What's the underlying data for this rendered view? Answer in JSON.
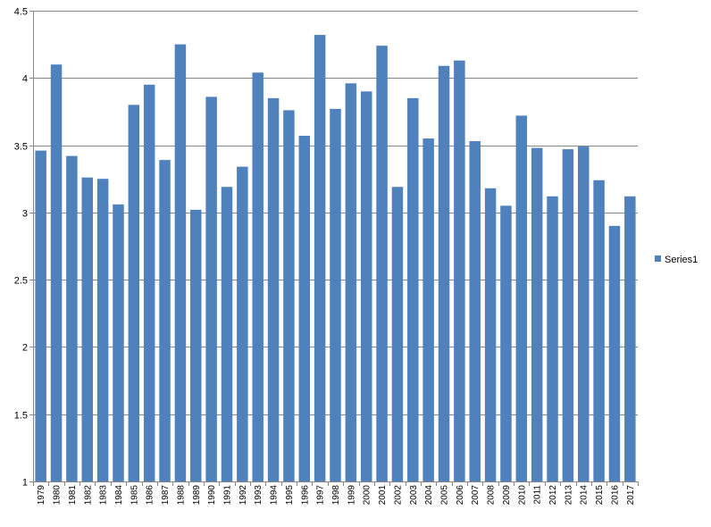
{
  "chart_data": {
    "type": "bar",
    "categories": [
      "1979",
      "1980",
      "1981",
      "1982",
      "1983",
      "1984",
      "1985",
      "1986",
      "1987",
      "1988",
      "1989",
      "1990",
      "1991",
      "1992",
      "1993",
      "1994",
      "1995",
      "1996",
      "1997",
      "1998",
      "1999",
      "2000",
      "2001",
      "2002",
      "2003",
      "2004",
      "2005",
      "2006",
      "2007",
      "2008",
      "2009",
      "2010",
      "2011",
      "2012",
      "2013",
      "2014",
      "2015",
      "2016",
      "2017"
    ],
    "series": [
      {
        "name": "Series1",
        "color": "#4f81bd",
        "values": [
          3.46,
          4.1,
          3.42,
          3.26,
          3.25,
          3.06,
          3.8,
          3.95,
          3.39,
          4.25,
          3.02,
          3.86,
          3.19,
          3.34,
          4.04,
          3.85,
          3.76,
          3.57,
          4.32,
          3.77,
          3.96,
          3.9,
          4.24,
          3.19,
          3.85,
          3.55,
          4.09,
          4.13,
          3.53,
          3.18,
          3.05,
          3.72,
          3.48,
          3.12,
          3.47,
          3.49,
          3.24,
          2.9,
          3.12
        ]
      }
    ],
    "yticks": [
      "1",
      "1.5",
      "2",
      "2.5",
      "3",
      "3.5",
      "4",
      "4.5"
    ],
    "ylim": [
      1,
      4.5
    ],
    "grid": true,
    "legend": "right",
    "gridline_color": "#868686",
    "axis_color": "#868686"
  }
}
